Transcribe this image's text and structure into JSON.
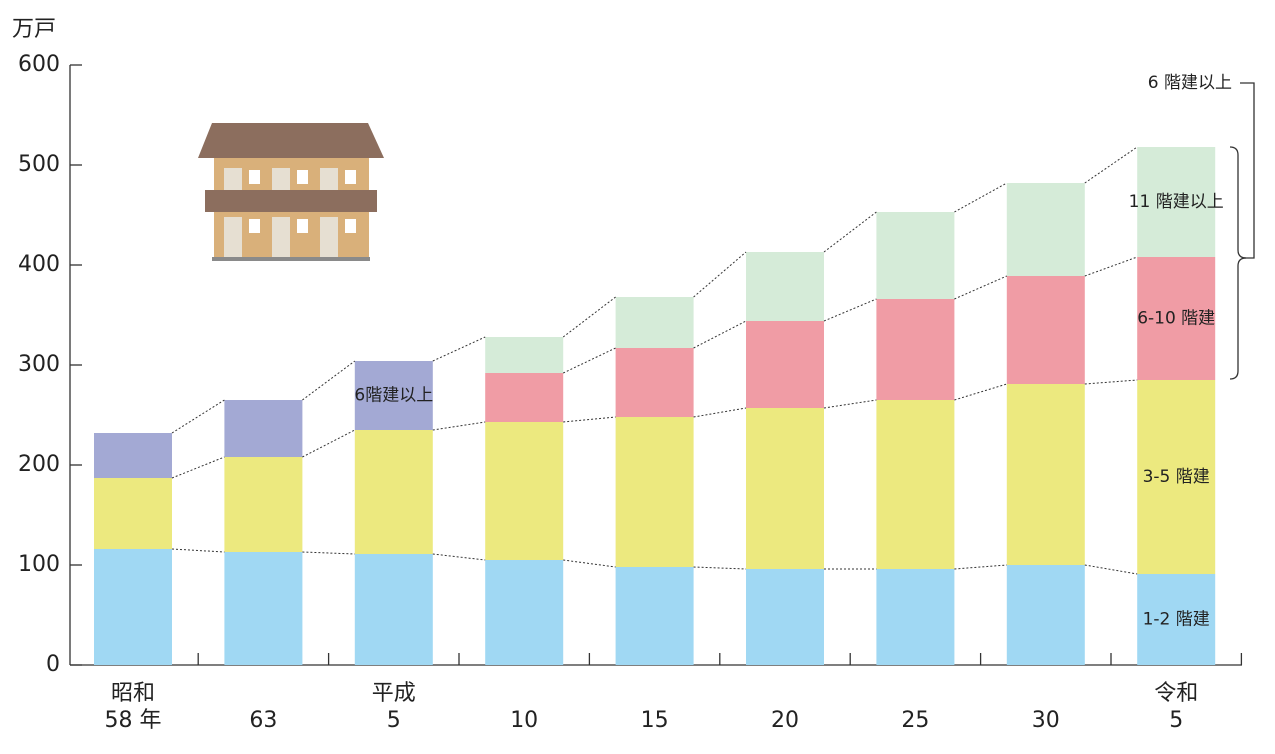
{
  "chart_data": {
    "type": "stacked_bar",
    "y_label": "万戸",
    "era_labels": [
      "昭和",
      null,
      "平成",
      null,
      null,
      null,
      null,
      null,
      "令和"
    ],
    "categories": [
      "58 年",
      "63",
      "5",
      "10",
      "15",
      "20",
      "25",
      "30",
      "5"
    ],
    "ylim": [
      0,
      600
    ],
    "yticks": [
      0,
      100,
      200,
      300,
      400,
      500,
      600
    ],
    "grid": false,
    "series": [
      {
        "name": "1-2 階建",
        "color": "#a0d8f3",
        "values": [
          116,
          113,
          111,
          105,
          98,
          96,
          96,
          100,
          91
        ]
      },
      {
        "name": "3-5 階建",
        "color": "#ece97f",
        "values": [
          71,
          95,
          124,
          138,
          150,
          161,
          169,
          181,
          194
        ]
      },
      {
        "name": "6階建以上",
        "color": "#a3a9d4",
        "values": [
          45,
          57,
          69,
          null,
          null,
          null,
          null,
          null,
          null
        ]
      },
      {
        "name": "6-10 階建",
        "color": "#f09ca5",
        "values": [
          null,
          null,
          null,
          49,
          69,
          87,
          101,
          108,
          123
        ]
      },
      {
        "name": "11 階建以上",
        "color": "#d5ebd8",
        "values": [
          null,
          null,
          null,
          36,
          51,
          69,
          87,
          93,
          110
        ]
      }
    ],
    "bracket_label": "6 階建以上"
  }
}
